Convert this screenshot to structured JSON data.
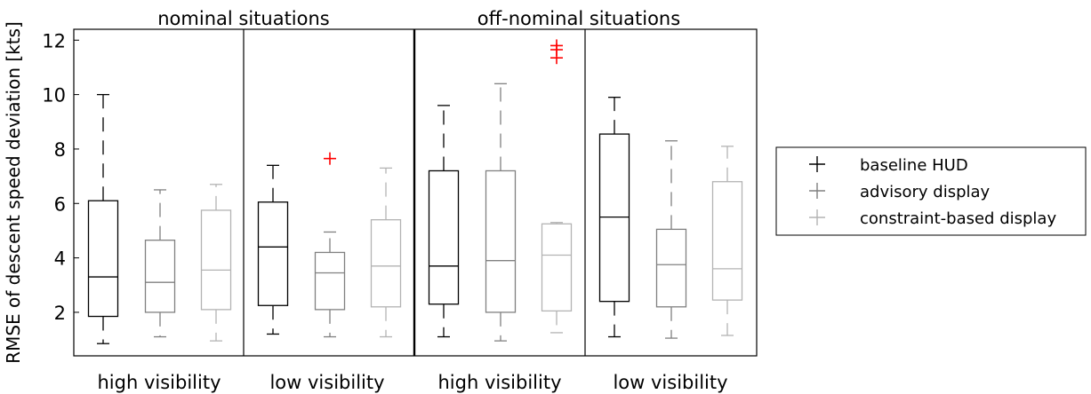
{
  "chart_data": {
    "type": "boxplot",
    "ylabel": "RMSE of descent speed deviation [kts]",
    "ylim": [
      0.4,
      12.4
    ],
    "yticks": [
      2,
      4,
      6,
      8,
      10,
      12
    ],
    "grid": false,
    "legend_position": "right",
    "groups": [
      {
        "title": "nominal situations",
        "panels": [
          "high visibility",
          "low visibility"
        ]
      },
      {
        "title": "off-nominal situations",
        "panels": [
          "high visibility",
          "low visibility"
        ]
      }
    ],
    "series": [
      {
        "name": "baseline HUD",
        "color": "#000000"
      },
      {
        "name": "advisory display",
        "color": "#808080"
      },
      {
        "name": "constraint-based display",
        "color": "#b3b3b3"
      }
    ],
    "outlier_color": "#ff0000",
    "boxes": [
      {
        "panel": 0,
        "series": 0,
        "whislo": 0.85,
        "q1": 1.85,
        "med": 3.3,
        "q3": 6.1,
        "whishi": 10.0,
        "fliers": []
      },
      {
        "panel": 0,
        "series": 1,
        "whislo": 1.1,
        "q1": 2.0,
        "med": 3.1,
        "q3": 4.65,
        "whishi": 6.5,
        "fliers": []
      },
      {
        "panel": 0,
        "series": 2,
        "whislo": 0.95,
        "q1": 2.1,
        "med": 3.55,
        "q3": 5.75,
        "whishi": 6.7,
        "fliers": []
      },
      {
        "panel": 1,
        "series": 0,
        "whislo": 1.2,
        "q1": 2.25,
        "med": 4.4,
        "q3": 6.05,
        "whishi": 7.4,
        "fliers": []
      },
      {
        "panel": 1,
        "series": 1,
        "whislo": 1.1,
        "q1": 2.1,
        "med": 3.45,
        "q3": 4.2,
        "whishi": 4.95,
        "fliers": [
          7.65
        ]
      },
      {
        "panel": 1,
        "series": 2,
        "whislo": 1.1,
        "q1": 2.2,
        "med": 3.7,
        "q3": 5.4,
        "whishi": 7.3,
        "fliers": []
      },
      {
        "panel": 2,
        "series": 0,
        "whislo": 1.1,
        "q1": 2.3,
        "med": 3.7,
        "q3": 7.2,
        "whishi": 9.6,
        "fliers": []
      },
      {
        "panel": 2,
        "series": 1,
        "whislo": 0.95,
        "q1": 2.0,
        "med": 3.9,
        "q3": 7.2,
        "whishi": 10.4,
        "fliers": []
      },
      {
        "panel": 2,
        "series": 2,
        "whislo": 1.25,
        "q1": 2.05,
        "med": 4.1,
        "q3": 5.25,
        "whishi": 5.3,
        "fliers": [
          11.35,
          11.65,
          11.8
        ]
      },
      {
        "panel": 3,
        "series": 0,
        "whislo": 1.1,
        "q1": 2.4,
        "med": 5.5,
        "q3": 8.55,
        "whishi": 9.9,
        "fliers": []
      },
      {
        "panel": 3,
        "series": 1,
        "whislo": 1.05,
        "q1": 2.2,
        "med": 3.75,
        "q3": 5.05,
        "whishi": 8.3,
        "fliers": []
      },
      {
        "panel": 3,
        "series": 2,
        "whislo": 1.15,
        "q1": 2.45,
        "med": 3.6,
        "q3": 6.8,
        "whishi": 8.1,
        "fliers": []
      }
    ]
  }
}
